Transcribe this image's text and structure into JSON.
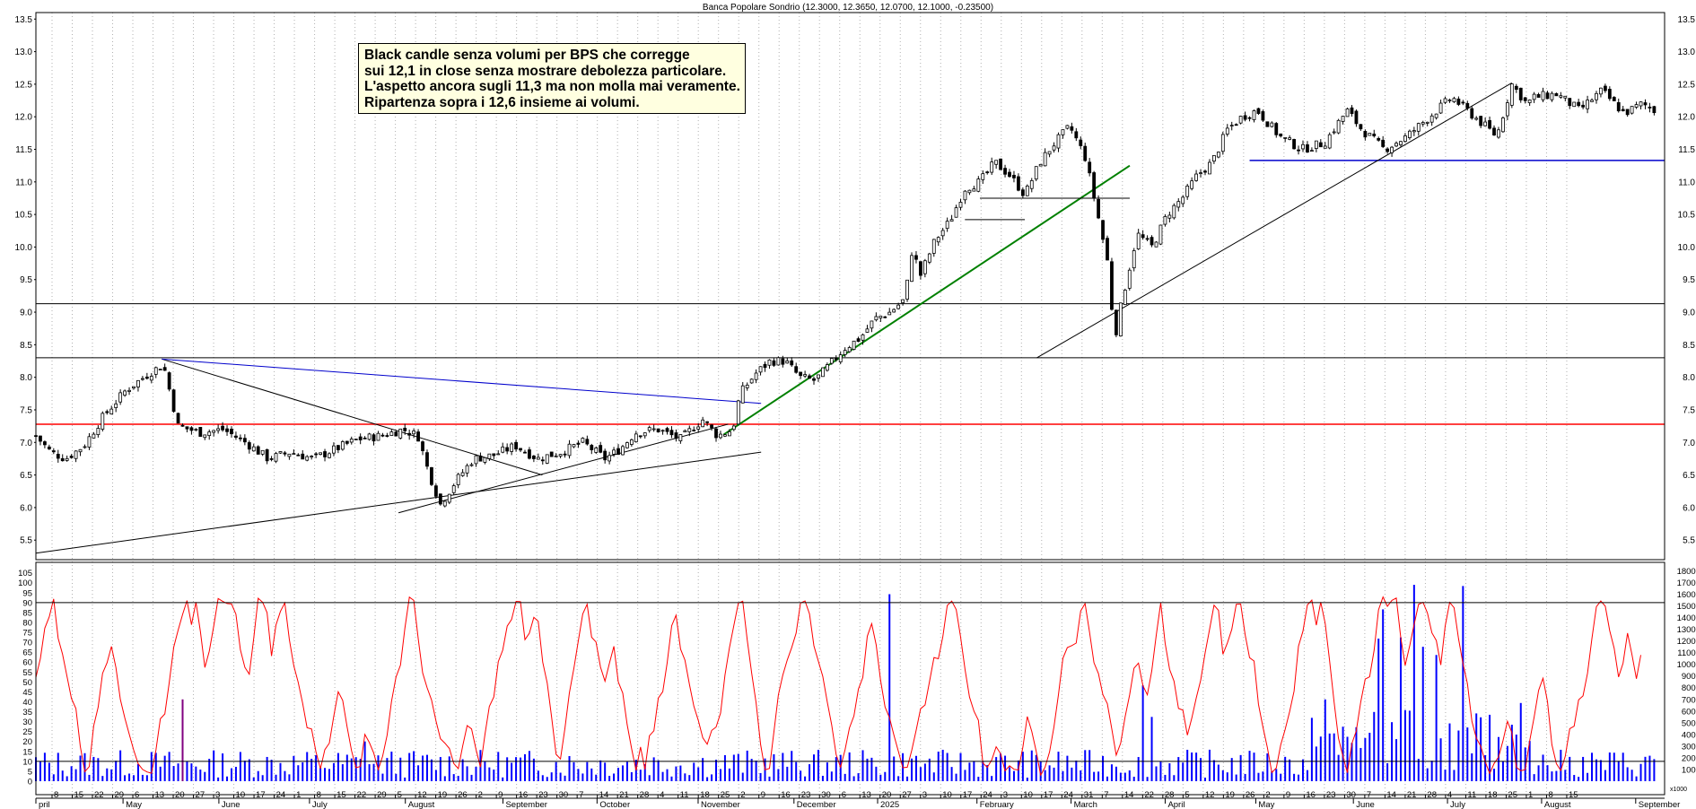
{
  "colors": {
    "background": "#ffffff",
    "candle_up": "#ffffff",
    "candle_down": "#000000",
    "red_line": "#ff0000",
    "blue_line": "#0000ff",
    "trend_green": "#008000",
    "trend_blue": "#0000cc",
    "trend_black": "#000000",
    "rsi": "#ff0000",
    "volume": "#0000ff",
    "note_bg": "#ffffe0"
  },
  "chart_data": [
    {
      "type": "candlestick",
      "title": "Banca Popolare Sondrio (12.3000, 12.3650, 12.0700, 12.1000, -0.23500)",
      "ylim": [
        5.2,
        13.6
      ],
      "y_ticks": [
        "5.5",
        "6.0",
        "6.5",
        "7.0",
        "7.5",
        "8.0",
        "8.5",
        "9.0",
        "9.5",
        "10.0",
        "10.5",
        "11.0",
        "11.5",
        "12.0",
        "12.5",
        "13.0",
        "13.5"
      ],
      "x_day_ticks": [
        "8",
        "15",
        "22",
        "29",
        "6",
        "13",
        "20",
        "27",
        "3",
        "10",
        "17",
        "24",
        "1",
        "8",
        "15",
        "22",
        "29",
        "5",
        "12",
        "19",
        "26",
        "2",
        "9",
        "16",
        "23",
        "30",
        "7",
        "14",
        "21",
        "28",
        "4",
        "11",
        "18",
        "25",
        "2",
        "9",
        "16",
        "23",
        "30",
        "6",
        "13",
        "20",
        "27",
        "3",
        "10",
        "17",
        "24",
        "3",
        "10",
        "17",
        "24",
        "31",
        "7",
        "14",
        "22",
        "28",
        "5",
        "12",
        "19",
        "26",
        "2",
        "9",
        "16",
        "23",
        "30",
        "7",
        "14",
        "21",
        "28",
        "4",
        "11",
        "18",
        "25",
        "1",
        "8",
        "15"
      ],
      "x_month_labels": [
        "pril",
        "May",
        "June",
        "July",
        "August",
        "September",
        "October",
        "November",
        "December",
        "2025",
        "February",
        "March",
        "April",
        "May",
        "June",
        "July",
        "August",
        "September"
      ],
      "horizontal_lines": [
        {
          "color": "red",
          "value": 7.28
        },
        {
          "color": "black",
          "value": 8.3
        },
        {
          "color": "black",
          "value": 9.13
        },
        {
          "color": "blue",
          "value": 11.33
        }
      ],
      "trendlines": [
        {
          "color": "black",
          "from": [
            0.0,
            5.3
          ],
          "to": [
            0.484,
            6.85
          ]
        },
        {
          "color": "black",
          "from": [
            0.242,
            5.92
          ],
          "to": [
            0.462,
            7.28
          ]
        },
        {
          "color": "black",
          "from": [
            0.084,
            8.28
          ],
          "to": [
            0.338,
            6.5
          ]
        },
        {
          "color": "blue",
          "from": [
            0.084,
            8.28
          ],
          "to": [
            0.484,
            7.6
          ]
        },
        {
          "color": "green",
          "from": [
            0.459,
            7.12
          ],
          "to": [
            0.73,
            11.25
          ]
        },
        {
          "color": "black",
          "from": [
            0.668,
            8.3
          ],
          "to": [
            0.985,
            12.52
          ]
        }
      ],
      "annotation": [
        "Black candle senza volumi per BPS che corregge",
        "sui 12,1 in close senza mostrare debolezza particolare.",
        "L'aspetto ancora sugli 11,3 ma non molla mai veramente.",
        "Ripartenza sopra i 12,6 insieme ai volumi."
      ],
      "close_anchors": [
        [
          0.0,
          7.1
        ],
        [
          0.01,
          6.85
        ],
        [
          0.02,
          6.75
        ],
        [
          0.032,
          6.95
        ],
        [
          0.045,
          7.4
        ],
        [
          0.06,
          7.8
        ],
        [
          0.075,
          8.05
        ],
        [
          0.085,
          8.2
        ],
        [
          0.095,
          7.25
        ],
        [
          0.11,
          7.15
        ],
        [
          0.125,
          7.2
        ],
        [
          0.14,
          7.0
        ],
        [
          0.155,
          6.75
        ],
        [
          0.17,
          6.85
        ],
        [
          0.185,
          6.75
        ],
        [
          0.2,
          6.9
        ],
        [
          0.215,
          7.05
        ],
        [
          0.23,
          7.1
        ],
        [
          0.245,
          7.2
        ],
        [
          0.255,
          7.1
        ],
        [
          0.262,
          6.55
        ],
        [
          0.27,
          6.05
        ],
        [
          0.28,
          6.4
        ],
        [
          0.292,
          6.75
        ],
        [
          0.305,
          6.8
        ],
        [
          0.32,
          6.95
        ],
        [
          0.335,
          6.75
        ],
        [
          0.35,
          6.85
        ],
        [
          0.365,
          7.0
        ],
        [
          0.38,
          6.75
        ],
        [
          0.39,
          6.9
        ],
        [
          0.4,
          7.15
        ],
        [
          0.415,
          7.2
        ],
        [
          0.43,
          7.05
        ],
        [
          0.445,
          7.35
        ],
        [
          0.455,
          7.1
        ],
        [
          0.465,
          7.2
        ],
        [
          0.47,
          7.75
        ],
        [
          0.48,
          8.05
        ],
        [
          0.49,
          8.25
        ],
        [
          0.5,
          8.25
        ],
        [
          0.51,
          8.0
        ],
        [
          0.52,
          7.95
        ],
        [
          0.53,
          8.2
        ],
        [
          0.54,
          8.45
        ],
        [
          0.55,
          8.6
        ],
        [
          0.56,
          8.9
        ],
        [
          0.57,
          9.0
        ],
        [
          0.58,
          9.2
        ],
        [
          0.585,
          10.0
        ],
        [
          0.59,
          9.55
        ],
        [
          0.6,
          10.1
        ],
        [
          0.61,
          10.4
        ],
        [
          0.62,
          10.9
        ],
        [
          0.63,
          11.0
        ],
        [
          0.64,
          11.3
        ],
        [
          0.65,
          11.1
        ],
        [
          0.66,
          10.8
        ],
        [
          0.67,
          11.3
        ],
        [
          0.68,
          11.6
        ],
        [
          0.69,
          11.85
        ],
        [
          0.7,
          11.4
        ],
        [
          0.705,
          10.9
        ],
        [
          0.715,
          9.8
        ],
        [
          0.72,
          8.6
        ],
        [
          0.725,
          9.2
        ],
        [
          0.735,
          10.2
        ],
        [
          0.745,
          10.0
        ],
        [
          0.755,
          10.5
        ],
        [
          0.765,
          10.75
        ],
        [
          0.775,
          11.1
        ],
        [
          0.785,
          11.3
        ],
        [
          0.795,
          11.8
        ],
        [
          0.805,
          12.0
        ],
        [
          0.815,
          12.1
        ],
        [
          0.83,
          11.7
        ],
        [
          0.845,
          11.5
        ],
        [
          0.86,
          11.6
        ],
        [
          0.875,
          12.1
        ],
        [
          0.885,
          11.8
        ],
        [
          0.9,
          11.5
        ],
        [
          0.915,
          11.7
        ],
        [
          0.93,
          12.0
        ],
        [
          0.945,
          12.3
        ],
        [
          0.96,
          12.0
        ],
        [
          0.975,
          11.7
        ],
        [
          0.985,
          12.5
        ],
        [
          0.995,
          12.2
        ],
        [
          1.0,
          12.3
        ],
        [
          1.015,
          12.35
        ],
        [
          1.03,
          12.1
        ],
        [
          1.045,
          12.4
        ],
        [
          1.06,
          12.05
        ],
        [
          1.072,
          12.2
        ],
        [
          1.08,
          12.1
        ]
      ]
    },
    {
      "type": "line",
      "name": "RSI",
      "ylim": [
        0,
        108
      ],
      "y_ticks": [
        "0",
        "5",
        "10",
        "15",
        "20",
        "25",
        "30",
        "35",
        "40",
        "45",
        "50",
        "55",
        "60",
        "65",
        "70",
        "75",
        "80",
        "85",
        "90",
        "95",
        "100",
        "105"
      ],
      "reference_lines": [
        10,
        90
      ]
    },
    {
      "type": "bar",
      "name": "Volume",
      "ylim": [
        0,
        18800
      ],
      "y_ticks": [
        "1000",
        "2000",
        "3000",
        "4000",
        "5000",
        "6000",
        "7000",
        "8000",
        "9000",
        "10000",
        "11000",
        "12000",
        "13000",
        "14000",
        "15000",
        "16000",
        "17000",
        "18000"
      ],
      "scale_label": "x1000",
      "volume_spikes": [
        [
          0.099,
          7000
        ],
        [
          0.22,
          3400
        ],
        [
          0.57,
          16000
        ],
        [
          0.74,
          8200
        ],
        [
          0.745,
          5500
        ],
        [
          0.86,
          7000
        ],
        [
          0.895,
          12200
        ],
        [
          0.9,
          14700
        ],
        [
          0.912,
          12300
        ],
        [
          0.92,
          16800
        ],
        [
          0.925,
          11500
        ],
        [
          0.935,
          10800
        ],
        [
          0.952,
          16700
        ],
        [
          0.96,
          5800
        ]
      ]
    }
  ]
}
